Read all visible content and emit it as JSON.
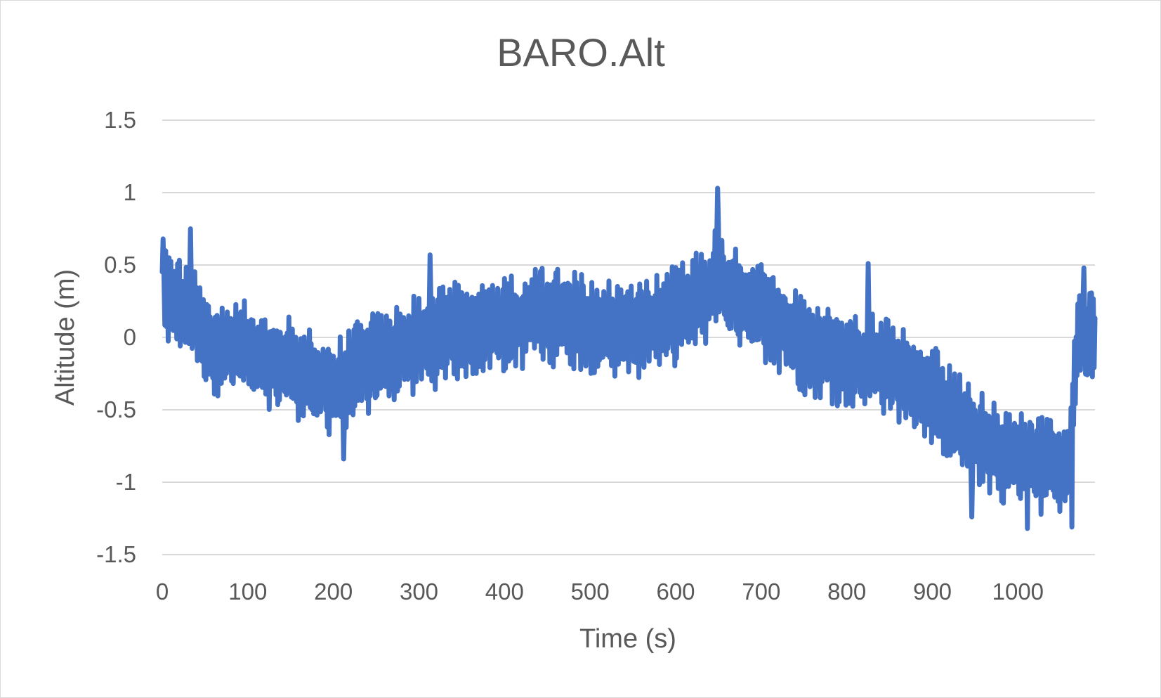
{
  "chart_data": {
    "type": "line",
    "title": "BARO.Alt",
    "xlabel": "Time (s)",
    "ylabel": "Altitude (m)",
    "xlim": [
      0,
      1090
    ],
    "ylim": [
      -1.5,
      1.5
    ],
    "x_ticks": [
      0,
      100,
      200,
      300,
      400,
      500,
      600,
      700,
      800,
      900,
      1000
    ],
    "x_tick_labels": [
      "0",
      "100",
      "200",
      "300",
      "400",
      "500",
      "600",
      "700",
      "800",
      "900",
      "1000"
    ],
    "y_ticks": [
      1.5,
      1,
      0.5,
      0,
      -0.5,
      -1,
      -1.5
    ],
    "y_tick_labels": [
      "1.5",
      "1",
      "0.5",
      "0",
      "-0.5",
      "-1",
      "-1.5"
    ],
    "grid": "horizontal",
    "legend": "none",
    "series_color": "#4472c4",
    "x_step": 1,
    "trend_approx": {
      "x": [
        0,
        20,
        40,
        60,
        100,
        150,
        200,
        250,
        300,
        350,
        400,
        450,
        500,
        550,
        600,
        640,
        650,
        660,
        700,
        750,
        800,
        850,
        900,
        950,
        1000,
        1060,
        1070,
        1080,
        1090
      ],
      "y": [
        0.25,
        0.25,
        0.1,
        -0.05,
        -0.1,
        -0.2,
        -0.35,
        -0.15,
        -0.05,
        0.05,
        0.1,
        0.15,
        0.1,
        0.05,
        0.15,
        0.3,
        0.5,
        0.3,
        0.2,
        -0.05,
        -0.15,
        -0.2,
        -0.4,
        -0.7,
        -0.85,
        -0.9,
        0.0,
        0.0,
        -0.05
      ]
    },
    "noise_amplitude_approx": 0.3,
    "notable_points": [
      {
        "x": 1,
        "y": 0.68
      },
      {
        "x": 33,
        "y": 0.75
      },
      {
        "x": 212,
        "y": -0.84
      },
      {
        "x": 313,
        "y": 0.57
      },
      {
        "x": 649,
        "y": 1.03
      },
      {
        "x": 825,
        "y": 0.51
      },
      {
        "x": 946,
        "y": -1.24
      },
      {
        "x": 1011,
        "y": -1.32
      },
      {
        "x": 1063,
        "y": -1.31
      },
      {
        "x": 1077,
        "y": 0.48
      }
    ]
  }
}
